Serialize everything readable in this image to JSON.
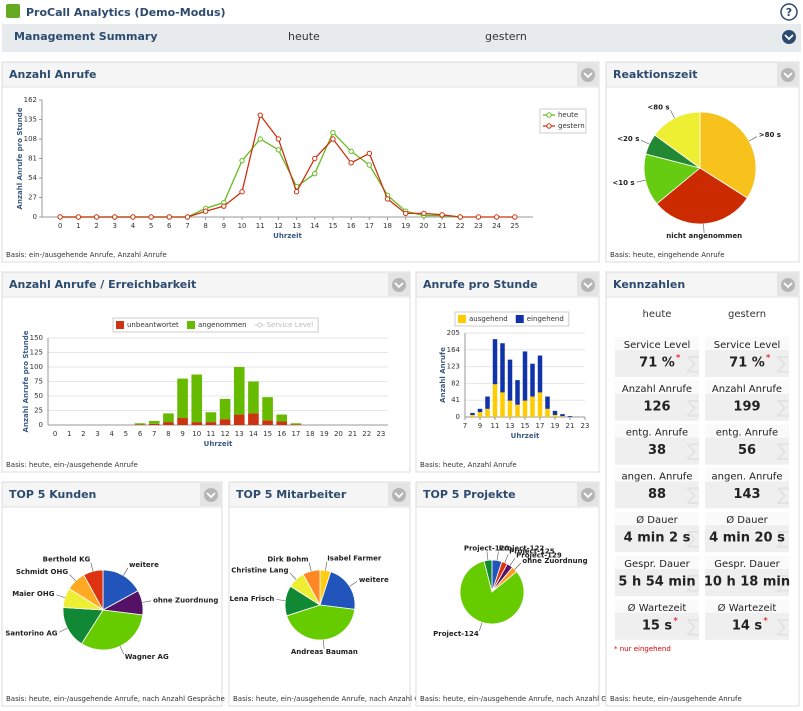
{
  "header": {
    "title": "ProCall Analytics (Demo-Modus)",
    "help": "?"
  },
  "summary": {
    "title": "Management Summary",
    "col1": "heute",
    "col2": "gestern"
  },
  "calls": {
    "title": "Anzahl Anrufe",
    "footer": "Basis: ein-/ausgehende Anrufe, Anzahl Anrufe",
    "chart": {
      "type": "line",
      "ylabel": "Anzahl Anrufe pro Stunde",
      "xlabel": "Uhrzeit",
      "x": [
        0,
        1,
        2,
        3,
        4,
        5,
        6,
        7,
        8,
        9,
        10,
        11,
        12,
        13,
        14,
        15,
        16,
        17,
        18,
        19,
        20,
        21,
        22,
        23,
        24,
        25
      ],
      "xlim": [
        -1,
        26
      ],
      "xticks": [
        0,
        1,
        2,
        3,
        4,
        5,
        6,
        7,
        8,
        9,
        10,
        11,
        12,
        13,
        14,
        15,
        16,
        17,
        18,
        19,
        20,
        21,
        22,
        23,
        24,
        25
      ],
      "ylim": [
        0,
        162
      ],
      "yticks": [
        0,
        27,
        54,
        81,
        108,
        135,
        162
      ],
      "series": [
        {
          "name": "heute",
          "color": "#66bb22",
          "values": [
            0,
            0,
            0,
            0,
            0,
            0,
            0,
            0,
            12,
            20,
            78,
            108,
            93,
            42,
            60,
            117,
            91,
            72,
            30,
            8,
            2,
            2,
            0,
            null,
            null,
            null
          ]
        },
        {
          "name": "gestern",
          "color": "#cc3311",
          "values": [
            0,
            0,
            0,
            0,
            0,
            0,
            0,
            0,
            8,
            15,
            35,
            141,
            108,
            35,
            81,
            108,
            75,
            88,
            25,
            5,
            5,
            3,
            0,
            0,
            0,
            0
          ]
        }
      ]
    }
  },
  "reaction": {
    "title": "Reaktionszeit",
    "footer": "Basis: heute, eingehende Anrufe",
    "chart": {
      "type": "pie",
      "labels": [
        ">80 s",
        "nicht angenommen",
        "<10 s",
        "<20 s",
        "<80 s"
      ],
      "values": [
        34,
        30,
        15,
        6,
        15
      ],
      "colors": [
        "#f7c21b",
        "#cc2a00",
        "#66cc11",
        "#228833",
        "#eeee33"
      ]
    }
  },
  "reach": {
    "title": "Anzahl Anrufe / Erreichbarkeit",
    "footer": "Basis: heute, ein-/ausgehende Anrufe",
    "chart": {
      "type": "bar",
      "stacked": true,
      "ylabel": "Anzahl Anrufe pro Stunde",
      "xlabel": "Uhrzeit",
      "categories": [
        0,
        1,
        2,
        3,
        4,
        5,
        6,
        7,
        8,
        9,
        10,
        11,
        12,
        13,
        14,
        15,
        16,
        17,
        18,
        19,
        20,
        21,
        22,
        23
      ],
      "ylim": [
        0,
        150
      ],
      "yticks": [
        0,
        25,
        50,
        75,
        100,
        125,
        150
      ],
      "grid": true,
      "series": [
        {
          "name": "unbeantwortet",
          "color": "#cc3311",
          "values": [
            0,
            0,
            0,
            0,
            0,
            0,
            1,
            2,
            5,
            12,
            5,
            5,
            10,
            18,
            20,
            8,
            6,
            1,
            0,
            0,
            0,
            0,
            0,
            0
          ]
        },
        {
          "name": "angenommen",
          "color": "#66bb00",
          "values": [
            0,
            0,
            0,
            0,
            0,
            0,
            2,
            5,
            15,
            68,
            82,
            17,
            35,
            82,
            55,
            40,
            12,
            2,
            0,
            0,
            0,
            0,
            0,
            0
          ]
        }
      ],
      "inactive_legend": {
        "name": "Service Level",
        "color": "#cccccc"
      }
    }
  },
  "perhour": {
    "title": "Anrufe pro Stunde",
    "footer": "Basis: heute, Anzahl Anrufe",
    "chart": {
      "type": "bar",
      "stacked": true,
      "ylabel": "Anzahl Anrufe",
      "xlabel": "Uhrzeit",
      "x": [
        8,
        9,
        10,
        11,
        12,
        13,
        14,
        15,
        16,
        17,
        18,
        19,
        20,
        21
      ],
      "xlim": [
        7,
        23
      ],
      "xticks": [
        7,
        9,
        11,
        13,
        15,
        17,
        19,
        21,
        23
      ],
      "ylim": [
        0,
        205
      ],
      "yticks": [
        0,
        41,
        82,
        123,
        164,
        205
      ],
      "grid": true,
      "series": [
        {
          "name": "ausgehend",
          "color": "#ffcc00",
          "values": [
            5,
            12,
            20,
            80,
            60,
            40,
            30,
            40,
            50,
            60,
            20,
            5,
            2,
            0
          ]
        },
        {
          "name": "eingehend",
          "color": "#1133aa",
          "values": [
            5,
            8,
            30,
            110,
            120,
            100,
            60,
            120,
            80,
            90,
            30,
            10,
            5,
            2
          ]
        }
      ]
    }
  },
  "kpis": {
    "title": "Kennzahlen",
    "footer": "Basis: heute, ein-/ausgehende Anrufe",
    "col1": "heute",
    "col2": "gestern",
    "rows": [
      {
        "label": "Service Level",
        "heute": "71 %",
        "gestern": "71 %",
        "note": "*"
      },
      {
        "label": "Anzahl Anrufe",
        "heute": "126",
        "gestern": "199"
      },
      {
        "label": "entg. Anrufe",
        "heute": "38",
        "gestern": "56"
      },
      {
        "label": "angen. Anrufe",
        "heute": "88",
        "gestern": "143"
      },
      {
        "label": "Ø Dauer",
        "heute": "4 min 2 s",
        "gestern": "4 min 20 s"
      },
      {
        "label": "Gespr. Dauer",
        "heute": "5 h 54 min",
        "gestern": "10 h 18 min"
      },
      {
        "label": "Ø Wartezeit",
        "heute": "15 s",
        "gestern": "14 s",
        "note": "*"
      }
    ],
    "footnote": "* nur eingehend"
  },
  "customers": {
    "title": "TOP 5 Kunden",
    "footer": "Basis: heute, ein-/ausgehende Anrufe, nach Anzahl Gespräche",
    "chart": {
      "type": "pie",
      "labels": [
        "weitere",
        "ohne Zuordnung",
        "Wagner AG",
        "Santorino AG",
        "Maier OHG",
        "Schmidt OHG",
        "Berthold KG"
      ],
      "values": [
        17,
        10,
        32,
        17,
        8,
        8,
        8
      ],
      "colors": [
        "#2255bb",
        "#551166",
        "#66cc00",
        "#118833",
        "#eeee33",
        "#ffaa22",
        "#dd3311"
      ]
    }
  },
  "staff": {
    "title": "TOP 5 Mitarbeiter",
    "footer": "Basis: heute, ein-/ausgehende Anrufe, nach Anzahl G...",
    "chart": {
      "type": "pie",
      "labels": [
        "Isabel Farmer",
        "weitere",
        "Andreas Bauman",
        "Lena Frisch",
        "Christine Lang",
        "Dirk Bohm"
      ],
      "values": [
        5,
        22,
        43,
        14,
        8,
        8
      ],
      "colors": [
        "#ffcc11",
        "#2255bb",
        "#66cc00",
        "#118833",
        "#eeee33",
        "#ff8822"
      ]
    }
  },
  "projects": {
    "title": "TOP 5 Projekte",
    "footer": "Basis: heute, ein-/ausgehende Anrufe, nach Anzahl G...",
    "chart": {
      "type": "pie",
      "labels": [
        "Project-122",
        "Project-125",
        "Project-129",
        "ohne Zuordnung",
        "Project-124",
        "Project-120"
      ],
      "values": [
        5,
        3,
        3,
        3,
        82,
        4
      ],
      "colors": [
        "#2255bb",
        "#dd3311",
        "#551166",
        "#ff9922",
        "#66cc00",
        "#118833"
      ]
    }
  }
}
